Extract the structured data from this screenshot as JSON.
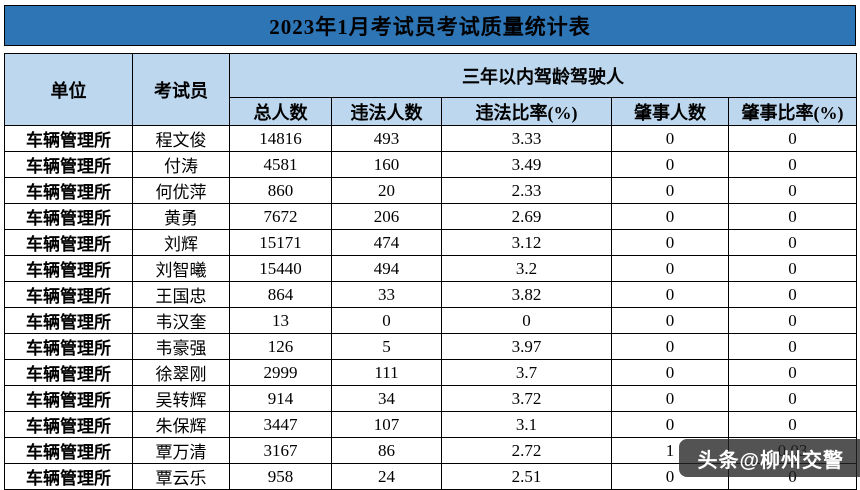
{
  "title": "2023年1月考试员考试质量统计表",
  "colors": {
    "title_bg": "#2E75B6",
    "header_bg": "#BDD7EE",
    "border": "#000000",
    "watermark_bg": "rgba(35,35,35,0.78)"
  },
  "table": {
    "col_unit": "单位",
    "col_examiner": "考试员",
    "group_header": "三年以内驾龄驾驶人",
    "sub_headers": [
      "总人数",
      "违法人数",
      "违法比率(%)",
      "肇事人数",
      "肇事比率(%)"
    ],
    "rows": [
      {
        "unit": "车辆管理所",
        "examiner": "程文俊",
        "total": "14816",
        "violations": "493",
        "violation_rate": "3.33",
        "accidents": "0",
        "accident_rate": "0"
      },
      {
        "unit": "车辆管理所",
        "examiner": "付涛",
        "total": "4581",
        "violations": "160",
        "violation_rate": "3.49",
        "accidents": "0",
        "accident_rate": "0"
      },
      {
        "unit": "车辆管理所",
        "examiner": "何优萍",
        "total": "860",
        "violations": "20",
        "violation_rate": "2.33",
        "accidents": "0",
        "accident_rate": "0"
      },
      {
        "unit": "车辆管理所",
        "examiner": "黄勇",
        "total": "7672",
        "violations": "206",
        "violation_rate": "2.69",
        "accidents": "0",
        "accident_rate": "0"
      },
      {
        "unit": "车辆管理所",
        "examiner": "刘辉",
        "total": "15171",
        "violations": "474",
        "violation_rate": "3.12",
        "accidents": "0",
        "accident_rate": "0"
      },
      {
        "unit": "车辆管理所",
        "examiner": "刘智曦",
        "total": "15440",
        "violations": "494",
        "violation_rate": "3.2",
        "accidents": "0",
        "accident_rate": "0"
      },
      {
        "unit": "车辆管理所",
        "examiner": "王国忠",
        "total": "864",
        "violations": "33",
        "violation_rate": "3.82",
        "accidents": "0",
        "accident_rate": "0"
      },
      {
        "unit": "车辆管理所",
        "examiner": "韦汉奎",
        "total": "13",
        "violations": "0",
        "violation_rate": "0",
        "accidents": "0",
        "accident_rate": "0"
      },
      {
        "unit": "车辆管理所",
        "examiner": "韦豪强",
        "total": "126",
        "violations": "5",
        "violation_rate": "3.97",
        "accidents": "0",
        "accident_rate": "0"
      },
      {
        "unit": "车辆管理所",
        "examiner": "徐翠刚",
        "total": "2999",
        "violations": "111",
        "violation_rate": "3.7",
        "accidents": "0",
        "accident_rate": "0"
      },
      {
        "unit": "车辆管理所",
        "examiner": "吴转辉",
        "total": "914",
        "violations": "34",
        "violation_rate": "3.72",
        "accidents": "0",
        "accident_rate": "0"
      },
      {
        "unit": "车辆管理所",
        "examiner": "朱保辉",
        "total": "3447",
        "violations": "107",
        "violation_rate": "3.1",
        "accidents": "0",
        "accident_rate": "0"
      },
      {
        "unit": "车辆管理所",
        "examiner": "覃万清",
        "total": "3167",
        "violations": "86",
        "violation_rate": "2.72",
        "accidents": "1",
        "accident_rate": "0.03"
      },
      {
        "unit": "车辆管理所",
        "examiner": "覃云乐",
        "total": "958",
        "violations": "24",
        "violation_rate": "2.51",
        "accidents": "0",
        "accident_rate": "0"
      }
    ]
  },
  "watermark": {
    "text": "头条@柳州交警"
  }
}
